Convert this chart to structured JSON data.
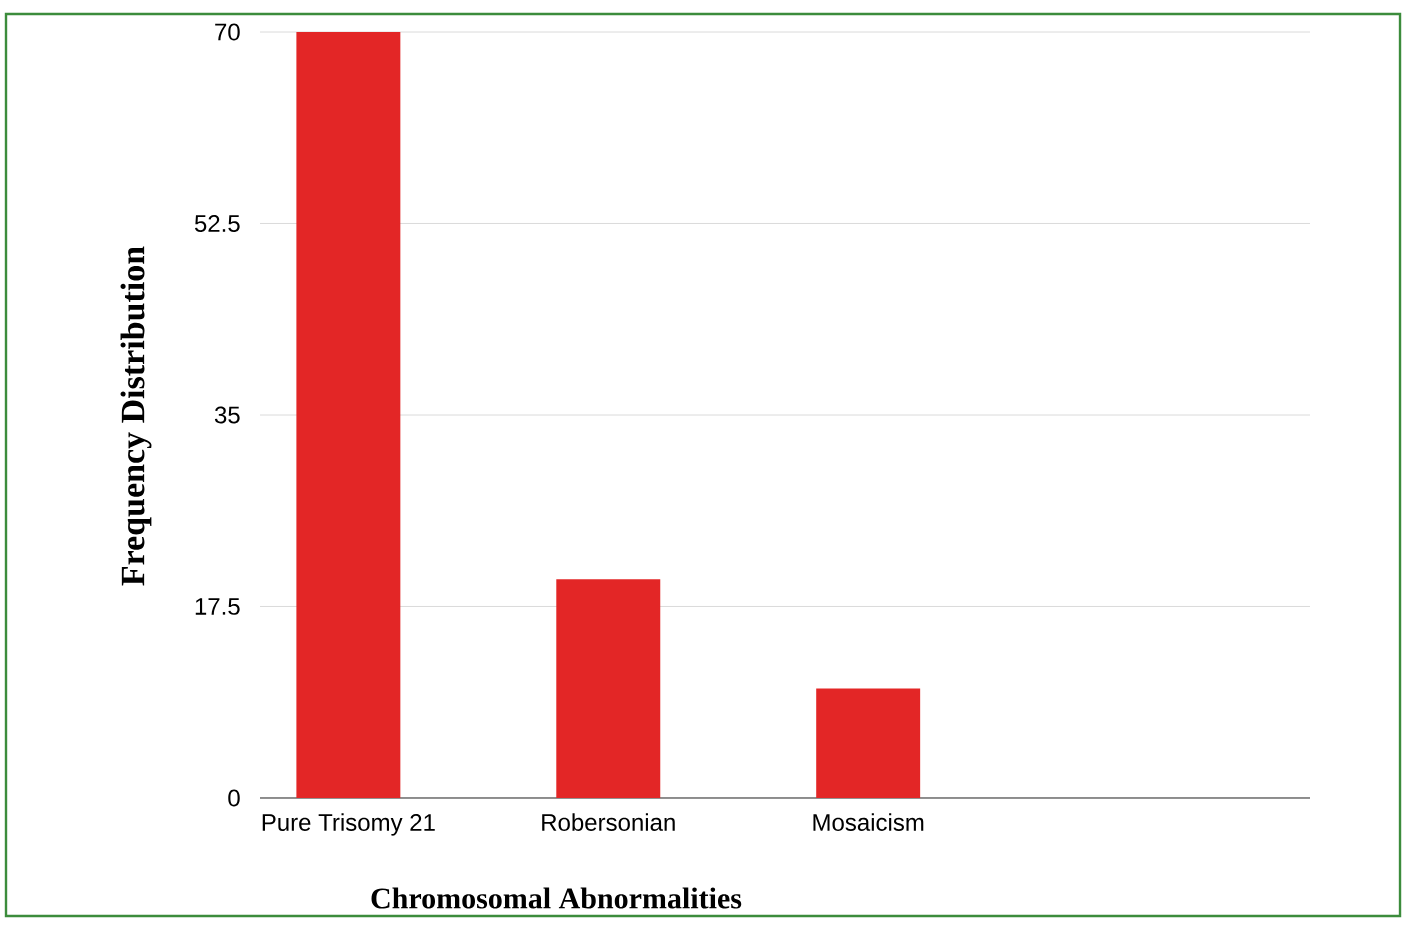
{
  "chart_data": {
    "type": "bar",
    "xlabel": "Chromosomal Abnormalities",
    "ylabel": "Frequency Distribution",
    "categories": [
      "Pure Trisomy 21",
      "Robersonian",
      "Mosaicism",
      null
    ],
    "values": [
      70,
      20,
      10,
      null
    ],
    "color": "#e32626",
    "ylim": [
      0,
      70
    ],
    "yticks": [
      0,
      17.5,
      35,
      52.5,
      70
    ],
    "grid": "y"
  }
}
